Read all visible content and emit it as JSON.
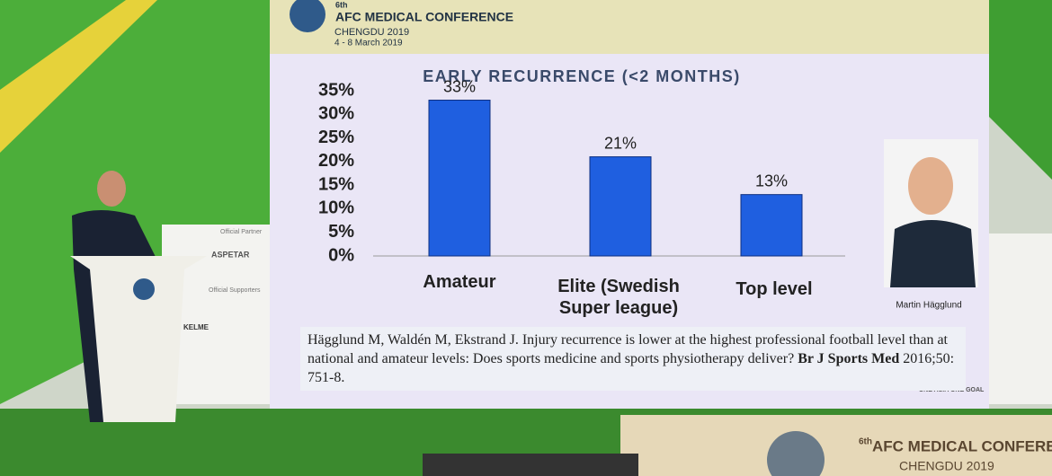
{
  "header": {
    "title": "AFC MEDICAL CONFERENCE",
    "edition": "6th",
    "city": "CHENGDU 2019",
    "dates": "4 - 8 March 2019"
  },
  "chart_data": {
    "type": "bar",
    "title": "EARLY RECURRENCE (<2 MONTHS)",
    "categories": [
      "Amateur",
      "Elite (Swedish Super league)",
      "Top level"
    ],
    "values": [
      33,
      21,
      13
    ],
    "value_labels": [
      "33%",
      "21%",
      "13%"
    ],
    "color": "#1f5fe0",
    "ylim": [
      0,
      35
    ],
    "yticks": [
      {
        "value": 0,
        "label": "0%"
      },
      {
        "value": 5,
        "label": "5%"
      },
      {
        "value": 10,
        "label": "10%"
      },
      {
        "value": 15,
        "label": "15%"
      },
      {
        "value": 20,
        "label": "20%"
      },
      {
        "value": 25,
        "label": "25%"
      },
      {
        "value": 30,
        "label": "30%"
      },
      {
        "value": 35,
        "label": "35%"
      }
    ],
    "grid": false
  },
  "photo": {
    "caption": "Martin Hägglund"
  },
  "citation": {
    "text": "Hägglund M, Waldén M, Ekstrand J. Injury recurrence is lower at the highest professional football level than at national and amateur levels: Does sports medicine and sports physiotherapy deliver?",
    "journal": "Br J Sports Med",
    "details": "2016;50: 751-8."
  },
  "slide_footer": "ONE ASIA ONE GOAL",
  "side": {
    "partner": "Official Partner",
    "supporters": "Official Supporters",
    "kelme": "KELME",
    "aspetar": "ASPETAR"
  },
  "stage": {
    "title": "AFC MEDICAL CONFERENCE",
    "edition": "6th",
    "city": "CHENGDU 2019"
  }
}
